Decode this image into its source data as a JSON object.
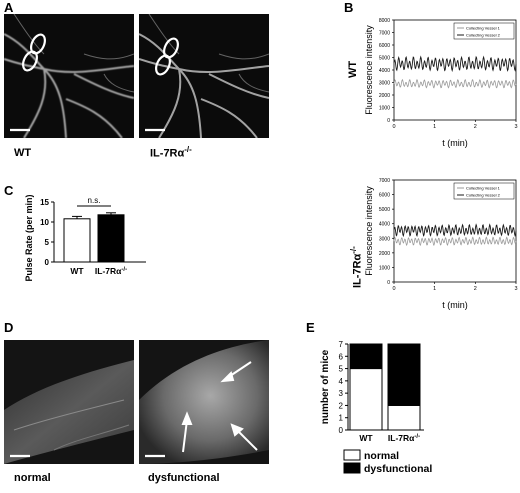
{
  "panels": {
    "A": {
      "letter": "A",
      "left_label": "WT",
      "right_label": "IL-7Rα",
      "right_label_sup": "-/-"
    },
    "B": {
      "letter": "B",
      "top_row_label": "WT",
      "bottom_row_label": "IL-7Rα",
      "bottom_row_label_sup": "-/-"
    },
    "C": {
      "letter": "C"
    },
    "D": {
      "letter": "D",
      "left_label": "normal",
      "right_label": "dysfunctional"
    },
    "E": {
      "letter": "E"
    }
  },
  "colors": {
    "vessel1": "#9a9a9a",
    "vessel2": "#1a1a1a",
    "bar_dark": "#000000",
    "bar_light": "#ffffff",
    "micrograph_bg": "#0b0b0b"
  },
  "chart_data": [
    {
      "id": "B-top",
      "type": "line",
      "title": "",
      "xlabel": "t (min)",
      "ylabel": "Fluorescence intensity",
      "xlim": [
        0,
        3
      ],
      "ylim": [
        0,
        8000
      ],
      "xticks": [
        "0",
        "1",
        "2",
        "3"
      ],
      "yticks": [
        "0",
        "1000",
        "2000",
        "3000",
        "4000",
        "5000",
        "6000",
        "7000",
        "8000"
      ],
      "legend_position": "top-right",
      "series": [
        {
          "name": "Collecting Vessel 1",
          "color": "#9a9a9a",
          "baseline": 2900,
          "amplitude": 300,
          "cycles": 33,
          "values_summary": "oscillating around ~2900"
        },
        {
          "name": "Collecting Vessel 2",
          "color": "#1a1a1a",
          "baseline": 4500,
          "amplitude": 500,
          "cycles": 33,
          "values_summary": "oscillating around ~4500"
        }
      ]
    },
    {
      "id": "B-bottom",
      "type": "line",
      "title": "",
      "xlabel": "t (min)",
      "ylabel": "Fluorescence intensity",
      "xlim": [
        0,
        3
      ],
      "ylim": [
        0,
        7000
      ],
      "xticks": [
        "0",
        "1",
        "2",
        "3"
      ],
      "yticks": [
        "0",
        "1000",
        "2000",
        "3000",
        "4000",
        "5000",
        "6000",
        "7000"
      ],
      "legend_position": "top-right",
      "series": [
        {
          "name": "Collecting Vessel 1",
          "color": "#9a9a9a",
          "baseline": 2800,
          "amplitude": 250,
          "cycles": 36,
          "values_summary": "oscillating around ~2800"
        },
        {
          "name": "Collecting Vessel 2",
          "color": "#1a1a1a",
          "baseline": 3550,
          "amplitude": 350,
          "cycles": 36,
          "values_summary": "oscillating around ~3550"
        }
      ]
    },
    {
      "id": "C",
      "type": "bar",
      "ylabel": "Pulse Rate (per min)",
      "ylim": [
        0,
        15
      ],
      "yticks": [
        "0",
        "5",
        "10",
        "15"
      ],
      "categories": [
        "WT",
        "IL-7Rα"
      ],
      "category_sups": [
        "",
        "-/-"
      ],
      "values": [
        10.8,
        11.8
      ],
      "errors": [
        0.6,
        0.5
      ],
      "fills": [
        "#ffffff",
        "#000000"
      ],
      "annotation": "n.s."
    },
    {
      "id": "E",
      "type": "bar",
      "stacked": true,
      "ylabel": "number of mice",
      "ylim": [
        0,
        7
      ],
      "yticks": [
        "0",
        "1",
        "2",
        "3",
        "4",
        "5",
        "6",
        "7"
      ],
      "categories": [
        "WT",
        "IL-7Rα"
      ],
      "category_sups": [
        "",
        "-/-"
      ],
      "series": [
        {
          "name": "normal",
          "fill": "#ffffff",
          "values": [
            5,
            2
          ]
        },
        {
          "name": "dysfunctional",
          "fill": "#000000",
          "values": [
            2,
            5
          ]
        }
      ]
    }
  ]
}
